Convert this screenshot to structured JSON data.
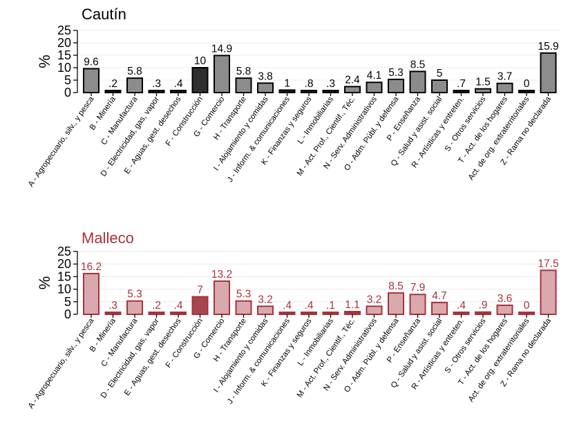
{
  "chart_data": [
    {
      "type": "bar",
      "title": "Cautín",
      "ylabel": "%",
      "ylim": [
        0,
        25
      ],
      "yticks": [
        0,
        5,
        10,
        15,
        20,
        25
      ],
      "grid": true,
      "colors": {
        "title": "#000000",
        "label": "#000000",
        "fill": "#8c8c8c",
        "fill_highlight": "#2e2e2e",
        "fill_small": "#1a1a1a",
        "stroke": "#000000"
      },
      "highlight_index": 5,
      "categories": [
        "A - Agropecuario, silv., y pesca",
        "B - Minería",
        "C - Manufactura",
        "D - Electricidad, gas, vapor",
        "E - Aguas, gest. desechos",
        "F - Construcción",
        "G - Comercio",
        "H - Transporte",
        "I - Alojamiento y comidas",
        "J - Inform. & comunicaciones",
        "K - Finanzas y seguros",
        "L - Inmobiliarias",
        "M - Act. Prof., Cientif., Téc.",
        "N - Serv. Administrativos",
        "O - Adm. Públ. y defensa",
        "P - Enseñanza",
        "Q - Salud y asist. social",
        "R - Artísticas y entreten.",
        "S - Otros servicios",
        "T - Act. de los hogares",
        "Act. de org. extraterritoriales",
        "Z - Rama no declarada"
      ],
      "values": [
        9.6,
        0.2,
        5.8,
        0.3,
        0.4,
        10,
        14.9,
        5.8,
        3.8,
        1,
        0.8,
        0.3,
        2.4,
        4.1,
        5.3,
        8.5,
        5,
        0.7,
        1.5,
        3.7,
        0,
        15.9
      ],
      "value_labels": [
        "9.6",
        ".2",
        "5.8",
        ".3",
        ".4",
        "10",
        "14.9",
        "5.8",
        "3.8",
        "1",
        ".8",
        ".3",
        "2.4",
        "4.1",
        "5.3",
        "8.5",
        "5",
        ".7",
        "1.5",
        "3.7",
        "0",
        "15.9"
      ]
    },
    {
      "type": "bar",
      "title": "Malleco",
      "ylabel": "%",
      "ylim": [
        0,
        25
      ],
      "yticks": [
        0,
        5,
        10,
        15,
        20,
        25
      ],
      "grid": true,
      "colors": {
        "title": "#a8323a",
        "label": "#a8323a",
        "fill": "#d9a9ae",
        "fill_highlight": "#a8464f",
        "fill_small": "#a8323a",
        "stroke": "#a8323a"
      },
      "highlight_index": 5,
      "categories": [
        "A - Agropecuario, silv., y pesca",
        "B - Minería",
        "C - Manufactura",
        "D - Electricidad, gas, vapor",
        "E - Aguas, gest. desechos",
        "F - Construcción",
        "G - Comercio",
        "H - Transporte",
        "I - Alojamiento y comidas",
        "J - Inform. & comunicaciones",
        "K - Finanzas y seguros",
        "L - Inmobiliarias",
        "M - Act. Prof., Cientif., Téc.",
        "N - Serv. Administrativos",
        "O - Adm. Públ. y defensa",
        "P - Enseñanza",
        "Q - Salud y asist. social",
        "R - Artísticas y entreten.",
        "S - Otros servicios",
        "T - Act. de los hogares",
        "Act. de org. extraterritoriales",
        "Z - Rama no declarada"
      ],
      "values": [
        16.2,
        0.3,
        5.3,
        0.2,
        0.4,
        7,
        13.2,
        5.3,
        3.2,
        0.4,
        0.4,
        0.1,
        1.1,
        3.2,
        8.5,
        7.9,
        4.7,
        0.4,
        0.9,
        3.6,
        0,
        17.5
      ],
      "value_labels": [
        "16.2",
        ".3",
        "5.3",
        ".2",
        ".4",
        "7",
        "13.2",
        "5.3",
        "3.2",
        ".4",
        ".4",
        ".1",
        "1.1",
        "3.2",
        "8.5",
        "7.9",
        "4.7",
        ".4",
        ".9",
        "3.6",
        "0",
        "17.5"
      ]
    }
  ]
}
